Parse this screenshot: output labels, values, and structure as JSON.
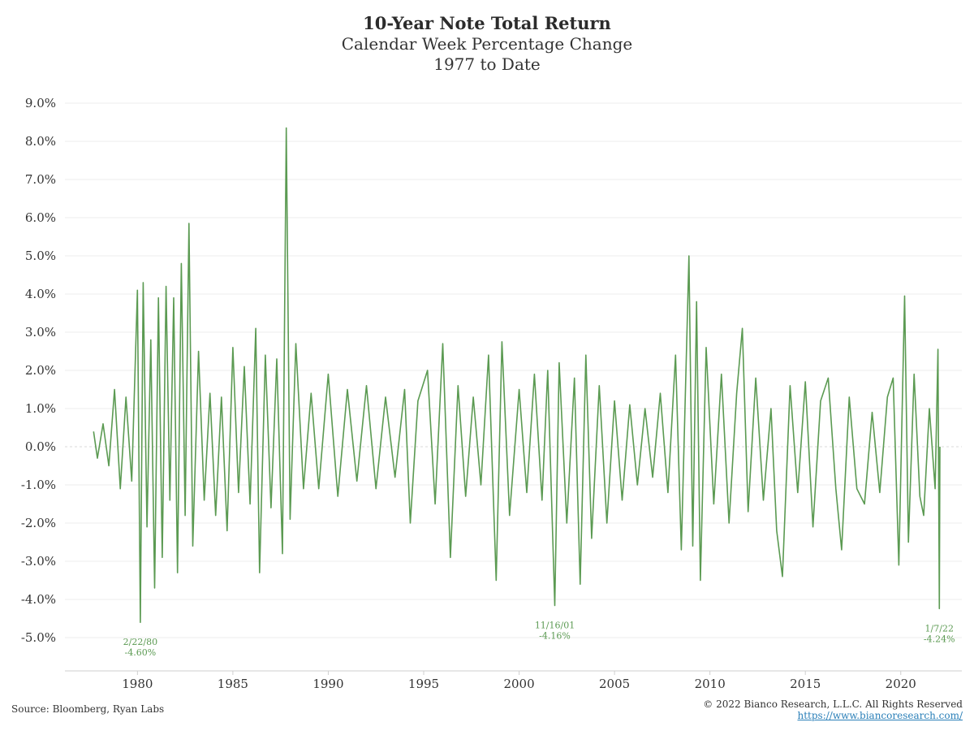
{
  "chart_data": {
    "type": "line",
    "title": "10-Year Note Total Return",
    "subtitle": "Calendar Week Percentage Change",
    "subtitle2": "1977 to Date",
    "xlabel": "",
    "ylabel": "",
    "xlim": [
      1976.2,
      2023.2
    ],
    "ylim": [
      -5.8,
      9.5
    ],
    "yticks": [
      {
        "value": 9,
        "label": "9.0%"
      },
      {
        "value": 8,
        "label": "8.0%"
      },
      {
        "value": 7,
        "label": "7.0%"
      },
      {
        "value": 6,
        "label": "6.0%"
      },
      {
        "value": 5,
        "label": "5.0%"
      },
      {
        "value": 4,
        "label": "4.0%"
      },
      {
        "value": 3,
        "label": "3.0%"
      },
      {
        "value": 2,
        "label": "2.0%"
      },
      {
        "value": 1,
        "label": "1.0%"
      },
      {
        "value": 0,
        "label": "0.0%"
      },
      {
        "value": -1,
        "label": "-1.0%"
      },
      {
        "value": -2,
        "label": "-2.0%"
      },
      {
        "value": -3,
        "label": "-3.0%"
      },
      {
        "value": -4,
        "label": "-4.0%"
      },
      {
        "value": -5,
        "label": "-5.0%"
      }
    ],
    "xticks": [
      {
        "value": 1980,
        "label": "1980"
      },
      {
        "value": 1985,
        "label": "1985"
      },
      {
        "value": 1990,
        "label": "1990"
      },
      {
        "value": 1995,
        "label": "1995"
      },
      {
        "value": 2000,
        "label": "2000"
      },
      {
        "value": 2005,
        "label": "2005"
      },
      {
        "value": 2010,
        "label": "2010"
      },
      {
        "value": 2015,
        "label": "2015"
      },
      {
        "value": 2020,
        "label": "2020"
      }
    ],
    "grid": true,
    "series_color": "#5b9a52",
    "series": [
      {
        "name": "",
        "points": [
          [
            1977.7,
            0.4
          ],
          [
            1977.9,
            -0.3
          ],
          [
            1978.2,
            0.6
          ],
          [
            1978.5,
            -0.5
          ],
          [
            1978.8,
            1.5
          ],
          [
            1979.1,
            -1.1
          ],
          [
            1979.4,
            1.3
          ],
          [
            1979.7,
            -0.9
          ],
          [
            1980.0,
            4.1
          ],
          [
            1980.15,
            -4.6
          ],
          [
            1980.3,
            4.3
          ],
          [
            1980.5,
            -2.1
          ],
          [
            1980.7,
            2.8
          ],
          [
            1980.9,
            -3.7
          ],
          [
            1981.1,
            3.9
          ],
          [
            1981.3,
            -2.9
          ],
          [
            1981.5,
            4.2
          ],
          [
            1981.7,
            -1.4
          ],
          [
            1981.9,
            3.9
          ],
          [
            1982.1,
            -3.3
          ],
          [
            1982.3,
            4.8
          ],
          [
            1982.5,
            -1.8
          ],
          [
            1982.7,
            5.85
          ],
          [
            1982.9,
            -2.6
          ],
          [
            1983.2,
            2.5
          ],
          [
            1983.5,
            -1.4
          ],
          [
            1983.8,
            1.4
          ],
          [
            1984.1,
            -1.8
          ],
          [
            1984.4,
            1.3
          ],
          [
            1984.7,
            -2.2
          ],
          [
            1985.0,
            2.6
          ],
          [
            1985.3,
            -1.2
          ],
          [
            1985.6,
            2.1
          ],
          [
            1985.9,
            -1.5
          ],
          [
            1986.2,
            3.1
          ],
          [
            1986.4,
            -3.3
          ],
          [
            1986.7,
            2.4
          ],
          [
            1987.0,
            -1.6
          ],
          [
            1987.3,
            2.3
          ],
          [
            1987.6,
            -2.8
          ],
          [
            1987.8,
            8.35
          ],
          [
            1988.0,
            -1.9
          ],
          [
            1988.3,
            2.7
          ],
          [
            1988.7,
            -1.1
          ],
          [
            1989.1,
            1.4
          ],
          [
            1989.5,
            -1.1
          ],
          [
            1990.0,
            1.9
          ],
          [
            1990.5,
            -1.3
          ],
          [
            1991.0,
            1.5
          ],
          [
            1991.5,
            -0.9
          ],
          [
            1992.0,
            1.6
          ],
          [
            1992.5,
            -1.1
          ],
          [
            1993.0,
            1.3
          ],
          [
            1993.5,
            -0.8
          ],
          [
            1994.0,
            1.5
          ],
          [
            1994.3,
            -2.0
          ],
          [
            1994.7,
            1.2
          ],
          [
            1995.2,
            2.0
          ],
          [
            1995.6,
            -1.5
          ],
          [
            1996.0,
            2.7
          ],
          [
            1996.4,
            -2.9
          ],
          [
            1996.8,
            1.6
          ],
          [
            1997.2,
            -1.3
          ],
          [
            1997.6,
            1.3
          ],
          [
            1998.0,
            -1.0
          ],
          [
            1998.4,
            2.4
          ],
          [
            1998.8,
            -3.5
          ],
          [
            1999.1,
            2.75
          ],
          [
            1999.5,
            -1.8
          ],
          [
            2000.0,
            1.5
          ],
          [
            2000.4,
            -1.2
          ],
          [
            2000.8,
            1.9
          ],
          [
            2001.2,
            -1.4
          ],
          [
            2001.5,
            2.0
          ],
          [
            2001.87,
            -4.16
          ],
          [
            2002.1,
            2.2
          ],
          [
            2002.5,
            -2.0
          ],
          [
            2002.9,
            1.8
          ],
          [
            2003.2,
            -3.6
          ],
          [
            2003.5,
            2.4
          ],
          [
            2003.8,
            -2.4
          ],
          [
            2004.2,
            1.6
          ],
          [
            2004.6,
            -2.0
          ],
          [
            2005.0,
            1.2
          ],
          [
            2005.4,
            -1.4
          ],
          [
            2005.8,
            1.1
          ],
          [
            2006.2,
            -1.0
          ],
          [
            2006.6,
            1.0
          ],
          [
            2007.0,
            -0.8
          ],
          [
            2007.4,
            1.4
          ],
          [
            2007.8,
            -1.2
          ],
          [
            2008.2,
            2.4
          ],
          [
            2008.5,
            -2.7
          ],
          [
            2008.9,
            5.0
          ],
          [
            2009.1,
            -2.6
          ],
          [
            2009.3,
            3.8
          ],
          [
            2009.5,
            -3.5
          ],
          [
            2009.8,
            2.6
          ],
          [
            2010.2,
            -1.5
          ],
          [
            2010.6,
            1.9
          ],
          [
            2011.0,
            -2.0
          ],
          [
            2011.4,
            1.4
          ],
          [
            2011.7,
            3.1
          ],
          [
            2012.0,
            -1.7
          ],
          [
            2012.4,
            1.8
          ],
          [
            2012.8,
            -1.4
          ],
          [
            2013.2,
            1.0
          ],
          [
            2013.5,
            -2.2
          ],
          [
            2013.8,
            -3.4
          ],
          [
            2014.2,
            1.6
          ],
          [
            2014.6,
            -1.2
          ],
          [
            2015.0,
            1.7
          ],
          [
            2015.4,
            -2.1
          ],
          [
            2015.8,
            1.2
          ],
          [
            2016.2,
            1.8
          ],
          [
            2016.6,
            -1.1
          ],
          [
            2016.9,
            -2.7
          ],
          [
            2017.3,
            1.3
          ],
          [
            2017.7,
            -1.1
          ],
          [
            2018.1,
            -1.5
          ],
          [
            2018.5,
            0.9
          ],
          [
            2018.9,
            -1.2
          ],
          [
            2019.3,
            1.3
          ],
          [
            2019.6,
            1.8
          ],
          [
            2019.9,
            -3.1
          ],
          [
            2020.2,
            3.95
          ],
          [
            2020.4,
            -2.5
          ],
          [
            2020.7,
            1.9
          ],
          [
            2021.0,
            -1.3
          ],
          [
            2021.2,
            -1.8
          ],
          [
            2021.5,
            1.0
          ],
          [
            2021.8,
            -1.1
          ],
          [
            2021.95,
            2.55
          ],
          [
            2022.02,
            -4.24
          ],
          [
            2022.05,
            0.0
          ]
        ]
      }
    ],
    "annotations": [
      {
        "x": 1980.15,
        "y": -4.6,
        "date": "2/22/80",
        "value": "-4.60%"
      },
      {
        "x": 2001.87,
        "y": -4.16,
        "date": "11/16/01",
        "value": "-4.16%"
      },
      {
        "x": 2022.02,
        "y": -4.24,
        "date": "1/7/22",
        "value": "-4.24%"
      }
    ],
    "annotation_color": "#5b9a52"
  },
  "footer": {
    "source": "Source: Bloomberg, Ryan Labs",
    "copyright": "© 2022 Bianco Research, L.L.C. All Rights Reserved",
    "url": "https://www.biancoresearch.com/"
  }
}
